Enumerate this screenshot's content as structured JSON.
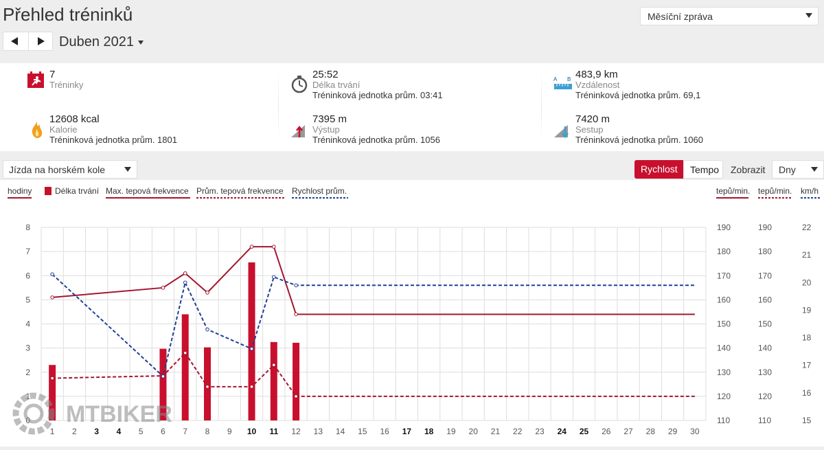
{
  "page": {
    "title": "Přehled tréninků",
    "report_select": "Měsíční zpráva",
    "month_label": "Duben 2021"
  },
  "stats": {
    "trainings": {
      "value": "7",
      "label": "Tréninky"
    },
    "duration": {
      "value": "25:52",
      "label": "Délka trvání",
      "avg": "Tréninková jednotka prům. 03:41"
    },
    "distance": {
      "value": "483,9 km",
      "label": "Vzdálenost",
      "avg": "Tréninková jednotka prům. 69,1"
    },
    "calories": {
      "value": "12608 kcal",
      "label": "Kalorie",
      "avg": "Tréninková jednotka prům. 1801"
    },
    "ascent": {
      "value": "7395 m",
      "label": "Výstup",
      "avg": "Tréninková jednotka prům. 1056"
    },
    "descent": {
      "value": "7420 m",
      "label": "Sestup",
      "avg": "Tréninková jednotka prům. 1060"
    },
    "distance_icon_letters": [
      "A",
      "B"
    ]
  },
  "controls": {
    "sport": "Jízda na horském kole",
    "speed_label": "Rychlost",
    "pace_label": "Tempo",
    "show_label": "Zobrazit",
    "period": "Dny"
  },
  "colors": {
    "accent": "#c8102e",
    "maxhr": "#a3162e",
    "avghr": "#a3162e",
    "speed": "#1e3f96",
    "grid": "#dddddd"
  },
  "watermark": "MTBIKER",
  "chart_data": {
    "type": "bar",
    "x": [
      1,
      2,
      3,
      4,
      5,
      6,
      7,
      8,
      9,
      10,
      11,
      12,
      13,
      14,
      15,
      16,
      17,
      18,
      19,
      20,
      21,
      22,
      23,
      24,
      25,
      26,
      27,
      28,
      29,
      30
    ],
    "bold_days": [
      3,
      4,
      10,
      11,
      17,
      18,
      24,
      25
    ],
    "left_axis": {
      "label": "hodiny",
      "ylim": [
        0,
        8
      ],
      "ticks": [
        0,
        1,
        2,
        3,
        4,
        5,
        6,
        7,
        8
      ]
    },
    "right_axis_1": {
      "label": "tepů/min.",
      "ylim": [
        110,
        190
      ],
      "ticks": [
        110,
        120,
        130,
        140,
        150,
        160,
        170,
        180,
        190
      ]
    },
    "right_axis_2": {
      "label": "tepů/min.",
      "ylim": [
        110,
        190
      ],
      "ticks": [
        110,
        120,
        130,
        140,
        150,
        160,
        170,
        180,
        190
      ]
    },
    "right_axis_3": {
      "label": "km/h",
      "ylim": [
        15,
        22
      ],
      "ticks": [
        15,
        16,
        17,
        18,
        19,
        20,
        21,
        22
      ]
    },
    "legend": [
      "Délka trvání",
      "Max. tepová frekvence",
      "Prům. tepová frekvence",
      "Rychlost prům."
    ],
    "duration_hours": [
      {
        "day": 1,
        "value": 2.3
      },
      {
        "day": 6,
        "value": 2.97
      },
      {
        "day": 7,
        "value": 4.4
      },
      {
        "day": 8,
        "value": 3.03
      },
      {
        "day": 10,
        "value": 6.55
      },
      {
        "day": 11,
        "value": 3.25
      },
      {
        "day": 12,
        "value": 3.22
      }
    ],
    "max_hr": [
      {
        "day": 1,
        "value": 161
      },
      {
        "day": 6,
        "value": 165
      },
      {
        "day": 7,
        "value": 171
      },
      {
        "day": 8,
        "value": 163
      },
      {
        "day": 10,
        "value": 182
      },
      {
        "day": 11,
        "value": 182
      },
      {
        "day": 12,
        "value": 154
      },
      {
        "day": 30,
        "value": 154
      }
    ],
    "avg_hr": [
      {
        "day": 1,
        "value": 127.5
      },
      {
        "day": 6,
        "value": 128.5
      },
      {
        "day": 7,
        "value": 138
      },
      {
        "day": 8,
        "value": 124
      },
      {
        "day": 10,
        "value": 124
      },
      {
        "day": 11,
        "value": 133
      },
      {
        "day": 12,
        "value": 120
      },
      {
        "day": 30,
        "value": 120
      }
    ],
    "avg_speed": [
      {
        "day": 1,
        "value": 20.3
      },
      {
        "day": 6,
        "value": 16.6
      },
      {
        "day": 7,
        "value": 20.0
      },
      {
        "day": 8,
        "value": 18.3
      },
      {
        "day": 10,
        "value": 17.6
      },
      {
        "day": 11,
        "value": 20.2
      },
      {
        "day": 12,
        "value": 19.9
      },
      {
        "day": 30,
        "value": 19.9
      }
    ]
  }
}
